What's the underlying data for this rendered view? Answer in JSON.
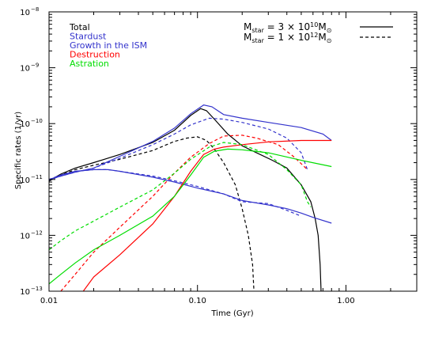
{
  "chart_data": {
    "type": "line",
    "xlabel": "Time (Gyr)",
    "ylabel": "Specific rates (1/yr)",
    "x_scale": "log",
    "y_scale": "log",
    "xlim": [
      0.01,
      3.0
    ],
    "ylim": [
      1e-13,
      1e-08
    ],
    "x_ticks": [
      {
        "value": 0.01,
        "label": "0.01"
      },
      {
        "value": 0.1,
        "label": "0.10"
      },
      {
        "value": 1.0,
        "label": "1.00"
      }
    ],
    "y_ticks": [
      {
        "value": 1e-13,
        "mantissa": "10",
        "exp": "−13"
      },
      {
        "value": 1e-12,
        "mantissa": "10",
        "exp": "−12"
      },
      {
        "value": 1e-11,
        "mantissa": "10",
        "exp": "−11"
      },
      {
        "value": 1e-10,
        "mantissa": "10",
        "exp": "−10"
      },
      {
        "value": 1e-09,
        "mantissa": "10",
        "exp": "−9"
      },
      {
        "value": 1e-08,
        "mantissa": "10",
        "exp": "−8"
      }
    ],
    "legend": [
      {
        "name": "Total",
        "color": "#000000"
      },
      {
        "name": "Stardust",
        "color": "#3333cc"
      },
      {
        "name": "Growth in the ISM",
        "color": "#3333cc"
      },
      {
        "name": "Destruction",
        "color": "#ff0000"
      },
      {
        "name": "Astration",
        "color": "#00dd00"
      }
    ],
    "mass_legend": [
      {
        "prefix": "M",
        "sub": "star",
        "eq": " = 3 × 10",
        "sup": "10",
        "unit": "M",
        "unit_sub": "⊙",
        "style": "solid"
      },
      {
        "prefix": "M",
        "sub": "star",
        "eq": " = 1 × 10",
        "sup": "12",
        "unit": "M",
        "unit_sub": "⊙",
        "style": "dashed"
      }
    ],
    "series": [
      {
        "color": "#000000",
        "style": "solid",
        "points": [
          [
            0.01,
            9.5e-12
          ],
          [
            0.012,
            1.25e-11
          ],
          [
            0.015,
            1.6e-11
          ],
          [
            0.02,
            2e-11
          ],
          [
            0.03,
            2.8e-11
          ],
          [
            0.05,
            4.6e-11
          ],
          [
            0.07,
            7.6e-11
          ],
          [
            0.09,
            1.4e-10
          ],
          [
            0.105,
            1.85e-10
          ],
          [
            0.115,
            1.7e-10
          ],
          [
            0.13,
            1.2e-10
          ],
          [
            0.16,
            6.5e-11
          ],
          [
            0.2,
            4e-11
          ],
          [
            0.25,
            3e-11
          ],
          [
            0.32,
            2.2e-11
          ],
          [
            0.4,
            1.6e-11
          ],
          [
            0.5,
            8e-12
          ],
          [
            0.58,
            4e-12
          ],
          [
            0.62,
            2e-12
          ],
          [
            0.65,
            1e-12
          ],
          [
            0.67,
            3e-13
          ],
          [
            0.68,
            1e-13
          ]
        ]
      },
      {
        "color": "#000000",
        "style": "dashed",
        "points": [
          [
            0.01,
            9.3e-12
          ],
          [
            0.012,
            1.2e-11
          ],
          [
            0.015,
            1.5e-11
          ],
          [
            0.02,
            1.8e-11
          ],
          [
            0.03,
            2.3e-11
          ],
          [
            0.05,
            3.3e-11
          ],
          [
            0.07,
            4.8e-11
          ],
          [
            0.085,
            5.5e-11
          ],
          [
            0.1,
            5.8e-11
          ],
          [
            0.115,
            5e-11
          ],
          [
            0.13,
            3.5e-11
          ],
          [
            0.15,
            2e-11
          ],
          [
            0.18,
            8e-12
          ],
          [
            0.2,
            3e-12
          ],
          [
            0.22,
            1e-12
          ],
          [
            0.235,
            3e-13
          ],
          [
            0.24,
            1e-13
          ]
        ]
      },
      {
        "color": "#3333cc",
        "style": "solid",
        "points": [
          [
            0.01,
            1e-11
          ],
          [
            0.012,
            1.15e-11
          ],
          [
            0.015,
            1.35e-11
          ],
          [
            0.02,
            1.6e-11
          ],
          [
            0.03,
            2.6e-11
          ],
          [
            0.05,
            4.8e-11
          ],
          [
            0.07,
            8.3e-11
          ],
          [
            0.09,
            1.5e-10
          ],
          [
            0.11,
            2.15e-10
          ],
          [
            0.125,
            2e-10
          ],
          [
            0.15,
            1.45e-10
          ],
          [
            0.2,
            1.25e-10
          ],
          [
            0.3,
            1.05e-10
          ],
          [
            0.5,
            8.5e-11
          ],
          [
            0.7,
            6.5e-11
          ],
          [
            0.8,
            5e-11
          ]
        ]
      },
      {
        "color": "#3333cc",
        "style": "dashed",
        "points": [
          [
            0.01,
            9.8e-12
          ],
          [
            0.012,
            1.15e-11
          ],
          [
            0.015,
            1.35e-11
          ],
          [
            0.02,
            1.6e-11
          ],
          [
            0.03,
            2.4e-11
          ],
          [
            0.05,
            4.2e-11
          ],
          [
            0.07,
            6.5e-11
          ],
          [
            0.09,
            9.5e-11
          ],
          [
            0.12,
            1.25e-10
          ],
          [
            0.15,
            1.2e-10
          ],
          [
            0.2,
            1.05e-10
          ],
          [
            0.3,
            8e-11
          ],
          [
            0.4,
            5.5e-11
          ],
          [
            0.5,
            3e-11
          ],
          [
            0.55,
            1.5e-11
          ]
        ]
      },
      {
        "color": "#3333cc",
        "style": "solid",
        "points": [
          [
            0.01,
            9.8e-12
          ],
          [
            0.012,
            1.2e-11
          ],
          [
            0.015,
            1.4e-11
          ],
          [
            0.02,
            1.5e-11
          ],
          [
            0.025,
            1.5e-11
          ],
          [
            0.03,
            1.4e-11
          ],
          [
            0.05,
            1.1e-11
          ],
          [
            0.07,
            9e-12
          ],
          [
            0.1,
            7e-12
          ],
          [
            0.15,
            5.5e-12
          ],
          [
            0.2,
            4.2e-12
          ],
          [
            0.3,
            3.5e-12
          ],
          [
            0.4,
            3e-12
          ],
          [
            0.5,
            2.5e-12
          ],
          [
            0.6,
            2.1e-12
          ],
          [
            0.8,
            1.65e-12
          ]
        ]
      },
      {
        "color": "#3333cc",
        "style": "dashed",
        "points": [
          [
            0.01,
            1e-11
          ],
          [
            0.012,
            1.2e-11
          ],
          [
            0.015,
            1.4e-11
          ],
          [
            0.02,
            1.5e-11
          ],
          [
            0.025,
            1.5e-11
          ],
          [
            0.03,
            1.4e-11
          ],
          [
            0.05,
            1.15e-11
          ],
          [
            0.07,
            9.5e-12
          ],
          [
            0.1,
            7.5e-12
          ],
          [
            0.15,
            5.5e-12
          ],
          [
            0.2,
            4e-12
          ],
          [
            0.3,
            3.7e-12
          ],
          [
            0.4,
            2.8e-12
          ],
          [
            0.5,
            2.2e-12
          ]
        ]
      },
      {
        "color": "#ff0000",
        "style": "solid",
        "points": [
          [
            0.017,
            1e-13
          ],
          [
            0.02,
            1.8e-13
          ],
          [
            0.03,
            4.5e-13
          ],
          [
            0.05,
            1.6e-12
          ],
          [
            0.07,
            5e-12
          ],
          [
            0.09,
            1.4e-11
          ],
          [
            0.11,
            2.8e-11
          ],
          [
            0.13,
            3.5e-11
          ],
          [
            0.15,
            3.8e-11
          ],
          [
            0.2,
            4.2e-11
          ],
          [
            0.3,
            4.7e-11
          ],
          [
            0.5,
            5e-11
          ],
          [
            0.8,
            5e-11
          ]
        ]
      },
      {
        "color": "#ff0000",
        "style": "dashed",
        "points": [
          [
            0.012,
            1e-13
          ],
          [
            0.015,
            2e-13
          ],
          [
            0.02,
            5e-13
          ],
          [
            0.03,
            1.4e-12
          ],
          [
            0.05,
            5e-12
          ],
          [
            0.07,
            1.3e-11
          ],
          [
            0.09,
            2.5e-11
          ],
          [
            0.12,
            4.4e-11
          ],
          [
            0.15,
            6e-11
          ],
          [
            0.2,
            6.2e-11
          ],
          [
            0.25,
            5.5e-11
          ],
          [
            0.35,
            4.2e-11
          ],
          [
            0.45,
            2.5e-11
          ],
          [
            0.55,
            1.5e-11
          ]
        ]
      },
      {
        "color": "#00dd00",
        "style": "solid",
        "points": [
          [
            0.01,
            1.35e-13
          ],
          [
            0.012,
            2e-13
          ],
          [
            0.015,
            3.2e-13
          ],
          [
            0.02,
            5.5e-13
          ],
          [
            0.03,
            1e-12
          ],
          [
            0.05,
            2.2e-12
          ],
          [
            0.07,
            5e-12
          ],
          [
            0.09,
            1.2e-11
          ],
          [
            0.11,
            2.5e-11
          ],
          [
            0.13,
            3.2e-11
          ],
          [
            0.16,
            3.5e-11
          ],
          [
            0.2,
            3.4e-11
          ],
          [
            0.3,
            3e-11
          ],
          [
            0.5,
            2.2e-11
          ],
          [
            0.8,
            1.7e-11
          ]
        ]
      },
      {
        "color": "#00dd00",
        "style": "dashed",
        "points": [
          [
            0.01,
            5.5e-13
          ],
          [
            0.012,
            8e-13
          ],
          [
            0.015,
            1.2e-12
          ],
          [
            0.02,
            1.8e-12
          ],
          [
            0.03,
            3.2e-12
          ],
          [
            0.05,
            6.5e-12
          ],
          [
            0.07,
            1.3e-11
          ],
          [
            0.09,
            2.3e-11
          ],
          [
            0.12,
            3.8e-11
          ],
          [
            0.15,
            4.6e-11
          ],
          [
            0.2,
            4.2e-11
          ],
          [
            0.3,
            2.8e-11
          ],
          [
            0.4,
            1.5e-11
          ],
          [
            0.5,
            8e-12
          ],
          [
            0.55,
            4e-12
          ],
          [
            0.58,
            3.2e-12
          ]
        ]
      }
    ]
  }
}
